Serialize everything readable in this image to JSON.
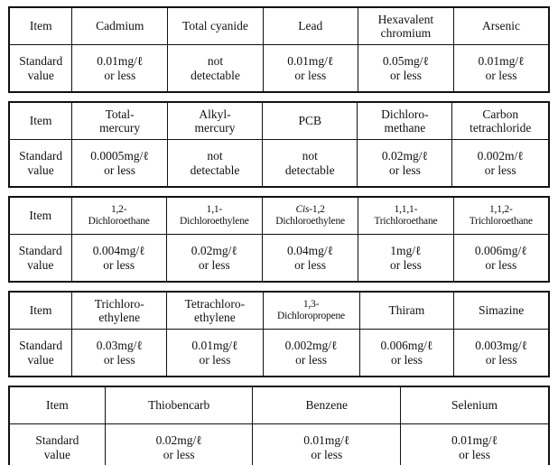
{
  "labels": {
    "item": "Item",
    "standard_value": "Standard\nvalue"
  },
  "tables": [
    {
      "columns": [
        {
          "item": "Cadmium",
          "value": "0.01mg/ℓ\nor less"
        },
        {
          "item": "Total cyanide",
          "value": "not\ndetectable"
        },
        {
          "item": "Lead",
          "value": "0.01mg/ℓ\nor less"
        },
        {
          "item": "Hexavalent\nchromium",
          "value": "0.05mg/ℓ\nor less"
        },
        {
          "item": "Arsenic",
          "value": "0.01mg/ℓ\nor less"
        }
      ]
    },
    {
      "columns": [
        {
          "item": "Total-\nmercury",
          "value": "0.0005mg/ℓ\nor less"
        },
        {
          "item": "Alkyl-\nmercury",
          "value": "not\ndetectable"
        },
        {
          "item": "PCB",
          "value": "not\ndetectable"
        },
        {
          "item": "Dichloro-\nmethane",
          "value": "0.02mg/ℓ\nor less"
        },
        {
          "item": "Carbon\ntetrachloride",
          "value": "0.002m/ℓ\nor less"
        }
      ]
    },
    {
      "columns": [
        {
          "item": "1,2-\nDichloroethane",
          "value": "0.004mg/ℓ\nor less"
        },
        {
          "item": "1,1-\nDichloroethylene",
          "value": "0.02mg/ℓ\nor less"
        },
        {
          "item": "Cis-1,2\nDichloroethylene",
          "italic_prefix": "Cis",
          "value": "0.04mg/ℓ\nor less"
        },
        {
          "item": "1,1,1-\nTrichloroethane",
          "value": "1mg/ℓ\nor less"
        },
        {
          "item": "1,1,2-\nTrichloroethane",
          "value": "0.006mg/ℓ\nor less"
        }
      ]
    },
    {
      "columns": [
        {
          "item": "Trichloro-\nethylene",
          "value": "0.03mg/ℓ\nor less"
        },
        {
          "item": "Tetrachloro-\nethylene",
          "value": "0.01mg/ℓ\nor less"
        },
        {
          "item": "1,3-\nDichloropropene",
          "value": "0.002mg/ℓ\nor less"
        },
        {
          "item": "Thiram",
          "value": "0.006mg/ℓ\nor less"
        },
        {
          "item": "Simazine",
          "value": "0.003mg/ℓ\nor less"
        }
      ]
    },
    {
      "columns": [
        {
          "item": "Thiobencarb",
          "value": "0.02mg/ℓ\nor less"
        },
        {
          "item": "Benzene",
          "value": "0.01mg/ℓ\nor less"
        },
        {
          "item": "Selenium",
          "value": "0.01mg/ℓ\nor less"
        }
      ]
    }
  ]
}
